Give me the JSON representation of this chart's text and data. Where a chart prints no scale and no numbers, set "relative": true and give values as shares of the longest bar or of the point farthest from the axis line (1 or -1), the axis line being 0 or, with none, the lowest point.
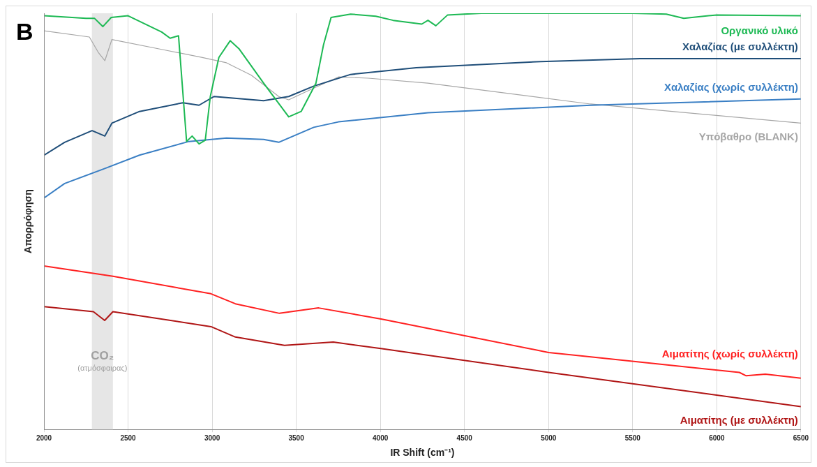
{
  "chart_data": {
    "type": "line",
    "relative": true,
    "xlabel": "IR Shift (cm⁻¹)",
    "ylabel": "Απορρόφηση",
    "annotations": [
      "B"
    ],
    "xlim": [
      2000,
      6500
    ],
    "xticks": [
      2000,
      2500,
      3000,
      3500,
      4000,
      4500,
      5000,
      5500,
      6000,
      6500
    ],
    "grid": "x",
    "legend": false,
    "marker": "none",
    "line_style": "solid",
    "bands": [
      {
        "axis": "x",
        "from": 2285,
        "to": 2410,
        "label": "CO₂ (ατμόσφαιρας)",
        "color": "#e6e6e6"
      }
    ],
    "series": [
      {
        "name": "Οργανικό υλικό",
        "color": "#1db954",
        "x": [
          2000,
          2250,
          2300,
          2350,
          2400,
          2500,
          2700,
          2750,
          2800,
          2848,
          2881,
          2922,
          2959,
          2989,
          3040,
          3107,
          3159,
          3306,
          3455,
          3529,
          3617,
          3662,
          3707,
          3823,
          3973,
          4076,
          4246,
          4283,
          4330,
          4400,
          4600,
          5000,
          5500,
          5700,
          5804,
          6000,
          6500
        ],
        "values": [
          0.994,
          0.988,
          0.988,
          0.968,
          0.99,
          0.994,
          0.955,
          0.94,
          0.946,
          0.692,
          0.705,
          0.686,
          0.695,
          0.8,
          0.894,
          0.934,
          0.915,
          0.832,
          0.751,
          0.764,
          0.832,
          0.924,
          0.99,
          0.998,
          0.993,
          0.983,
          0.974,
          0.983,
          0.97,
          0.996,
          1,
          1,
          1,
          0.998,
          0.988,
          0.996,
          0.994
        ]
      },
      {
        "name": "Χαλαζίας (με συλλέκτη)",
        "color": "#1f4e79",
        "x": [
          2000,
          2123,
          2286,
          2362,
          2404,
          2568,
          2826,
          2922,
          3011,
          3306,
          3455,
          3604,
          3823,
          4213,
          4953,
          5544,
          6500
        ],
        "values": [
          0.659,
          0.69,
          0.718,
          0.705,
          0.736,
          0.764,
          0.785,
          0.779,
          0.8,
          0.79,
          0.8,
          0.825,
          0.853,
          0.869,
          0.884,
          0.891,
          0.891
        ]
      },
      {
        "name": "Χαλαζίας (χωρίς συλλέκτη)",
        "color": "#3a7fc4",
        "x": [
          2000,
          2123,
          2362,
          2568,
          2862,
          3085,
          3306,
          3396,
          3604,
          3751,
          4283,
          5249,
          6500
        ],
        "values": [
          0.556,
          0.591,
          0.627,
          0.659,
          0.692,
          0.7,
          0.697,
          0.69,
          0.726,
          0.739,
          0.761,
          0.779,
          0.794
        ]
      },
      {
        "name": "Υπόβαθρο (BLANK)",
        "color": "#a6a6a6",
        "x": [
          2000,
          2270,
          2323,
          2362,
          2404,
          2715,
          2937,
          3085,
          3233,
          3396,
          3455,
          3604,
          3751,
          3928,
          4283,
          5249,
          6500
        ],
        "values": [
          0.958,
          0.943,
          0.906,
          0.886,
          0.937,
          0.912,
          0.894,
          0.881,
          0.851,
          0.8,
          0.792,
          0.82,
          0.847,
          0.844,
          0.832,
          0.782,
          0.736
        ]
      },
      {
        "name": "Αιματίτης (χωρίς συλλέκτη)",
        "color": "#ff2020",
        "x": [
          2000,
          2410,
          2993,
          3138,
          3400,
          3633,
          4010,
          5000,
          6134,
          6175,
          6289,
          6500
        ],
        "values": [
          0.393,
          0.368,
          0.326,
          0.302,
          0.279,
          0.292,
          0.265,
          0.185,
          0.137,
          0.129,
          0.133,
          0.123
        ]
      },
      {
        "name": "Αιματίτης (με συλλέκτη)",
        "color": "#b01515",
        "x": [
          2000,
          2294,
          2361,
          2410,
          2993,
          3138,
          3430,
          3720,
          4010,
          5000,
          6500
        ],
        "values": [
          0.295,
          0.283,
          0.262,
          0.283,
          0.247,
          0.222,
          0.202,
          0.21,
          0.194,
          0.137,
          0.055
        ]
      }
    ]
  }
}
